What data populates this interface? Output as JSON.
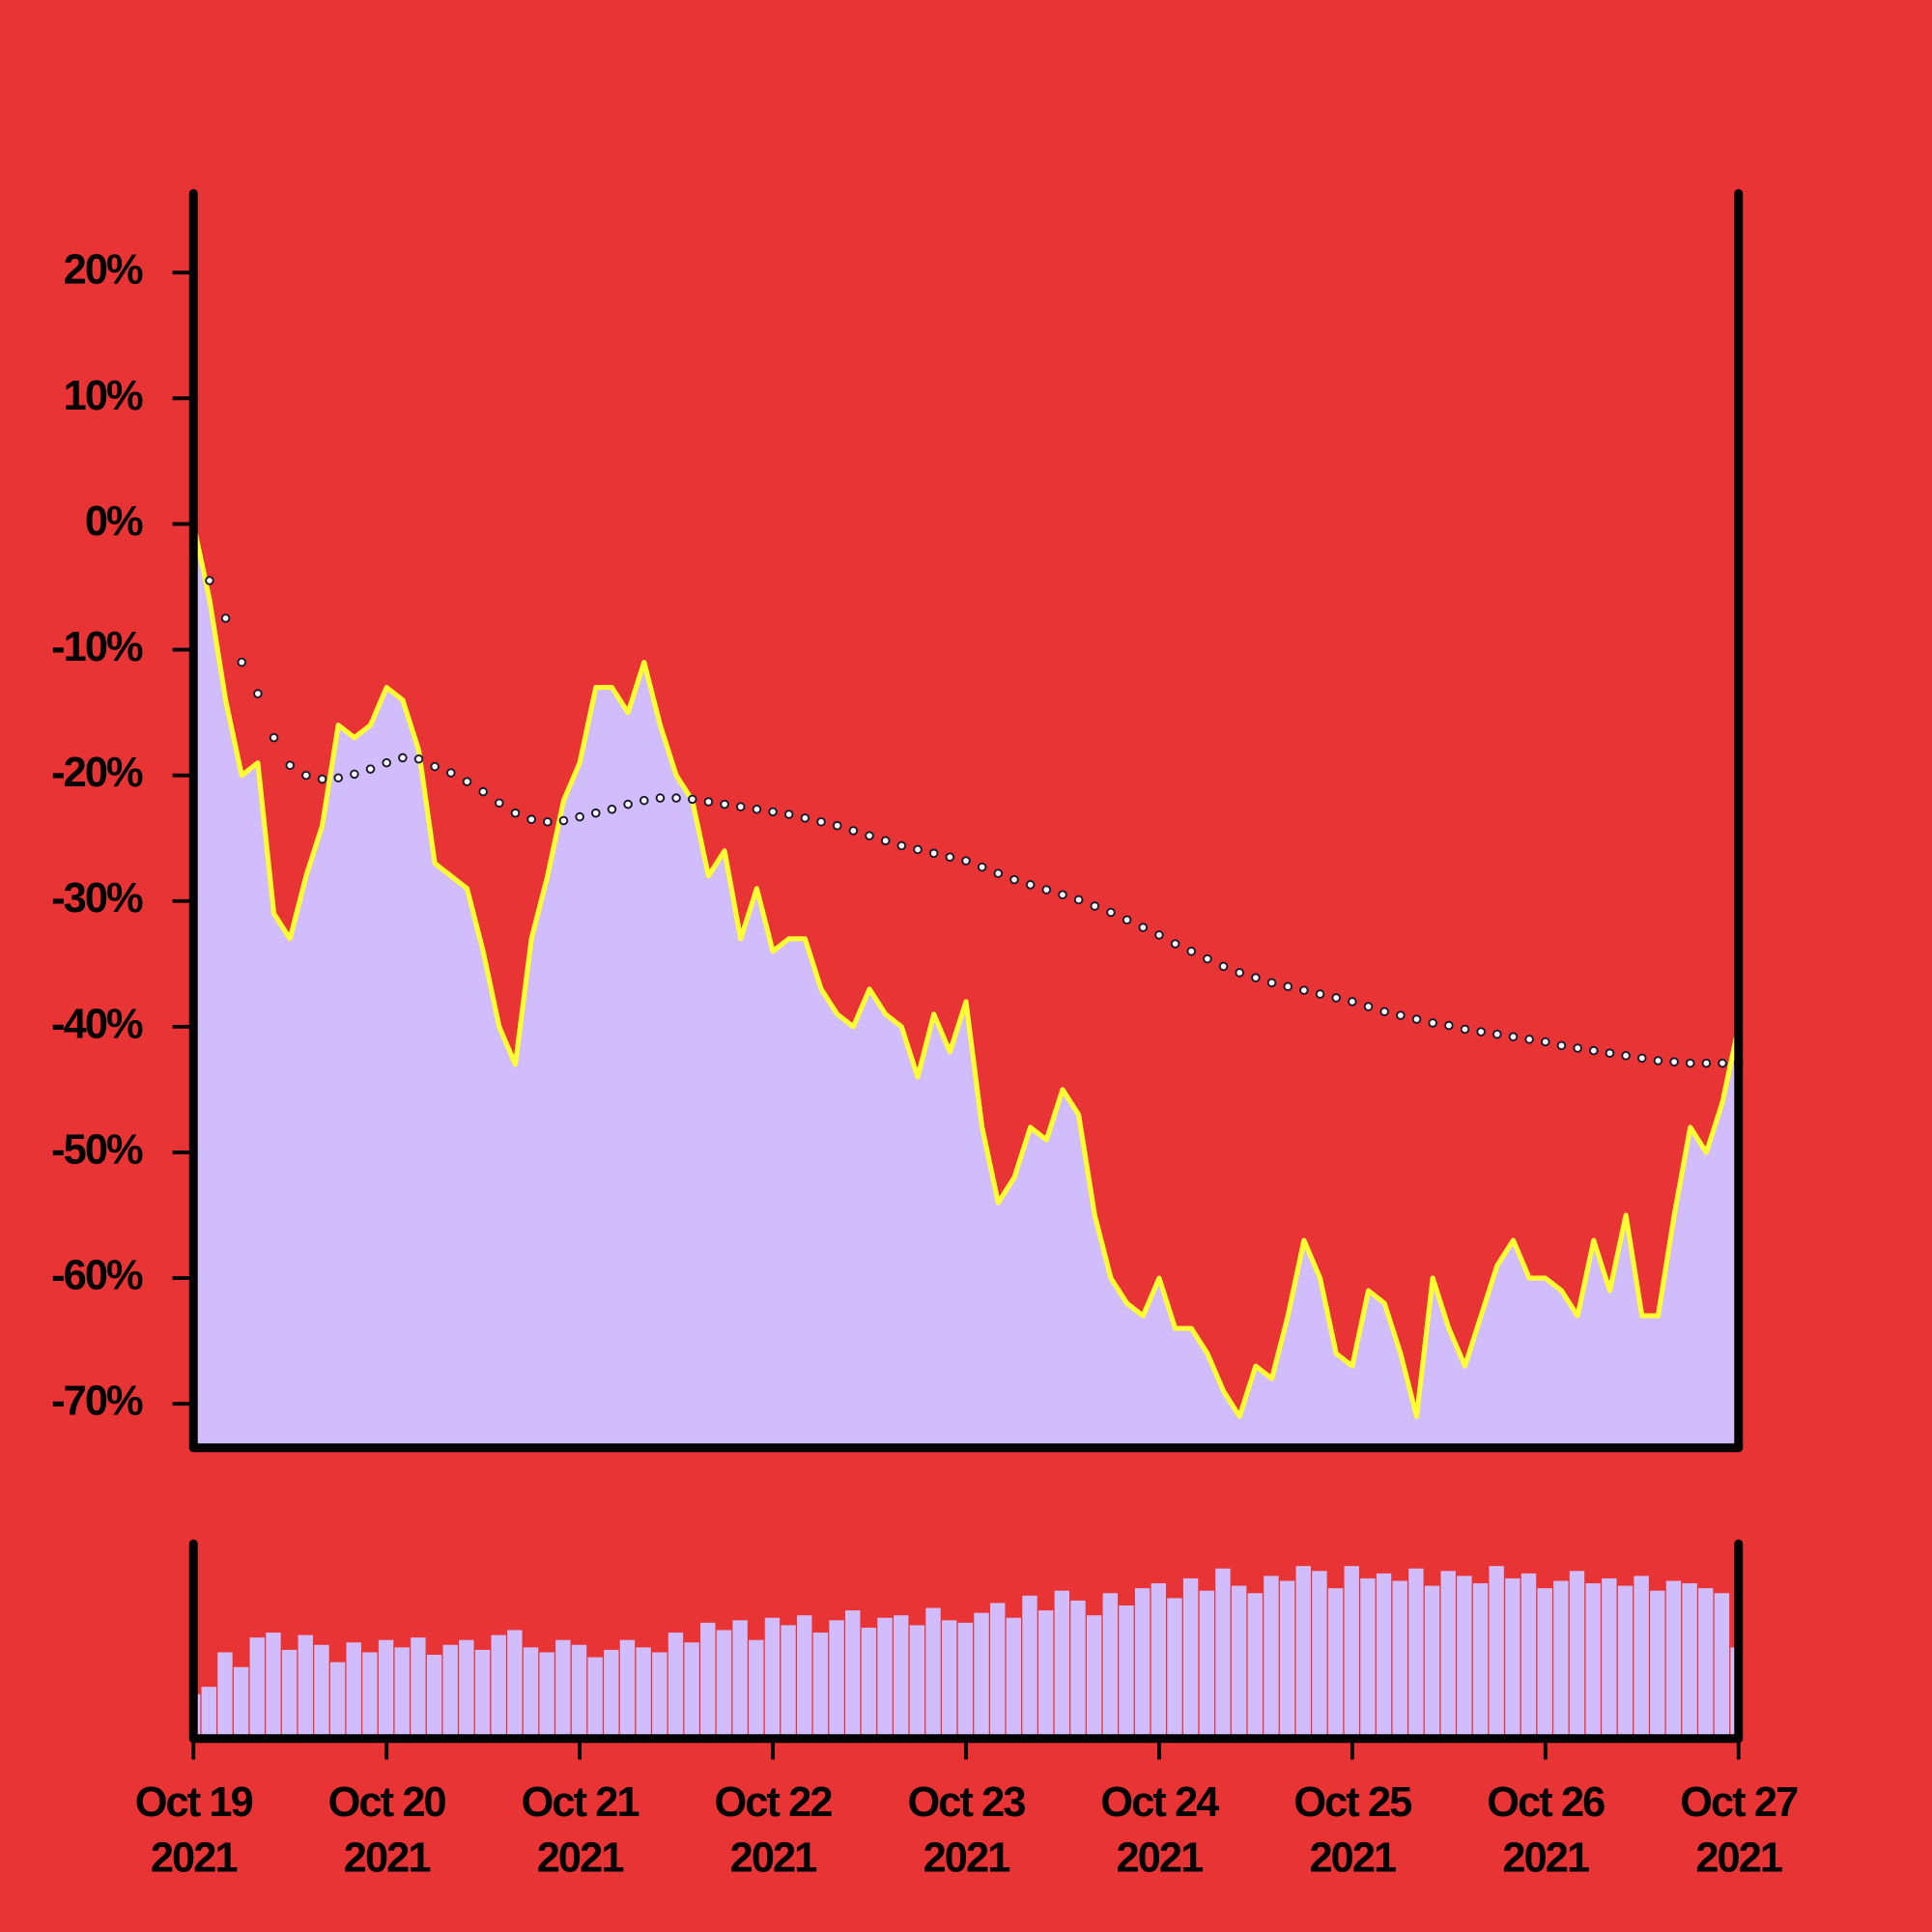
{
  "chart_data": {
    "type": "area",
    "x": [
      0,
      2,
      4,
      6,
      8,
      10,
      12,
      14,
      16,
      18,
      20,
      22,
      24,
      26,
      28,
      30,
      32,
      34,
      36,
      38,
      40,
      42,
      44,
      46,
      48,
      50,
      52,
      54,
      56,
      58,
      60,
      62,
      64,
      66,
      68,
      70,
      72,
      74,
      76,
      78,
      80,
      82,
      84,
      86,
      88,
      90,
      92,
      94,
      96,
      98,
      100,
      102,
      104,
      106,
      108,
      110,
      112,
      114,
      116,
      118,
      120,
      122,
      124,
      126,
      128,
      130,
      132,
      134,
      136,
      138,
      140,
      142,
      144,
      146,
      148,
      150,
      152,
      154,
      156,
      158,
      160,
      162,
      164,
      166,
      168,
      170,
      172,
      174,
      176,
      178,
      180,
      182,
      184,
      186,
      188,
      190,
      192
    ],
    "xlim": [
      0,
      192
    ],
    "xticks": [
      {
        "value": 0,
        "label": [
          "Oct 19",
          "2021"
        ]
      },
      {
        "value": 24,
        "label": [
          "Oct 20",
          "2021"
        ]
      },
      {
        "value": 48,
        "label": [
          "Oct 21",
          "2021"
        ]
      },
      {
        "value": 72,
        "label": [
          "Oct 22",
          "2021"
        ]
      },
      {
        "value": 96,
        "label": [
          "Oct 23",
          "2021"
        ]
      },
      {
        "value": 120,
        "label": [
          "Oct 24",
          "2021"
        ]
      },
      {
        "value": 144,
        "label": [
          "Oct 25",
          "2021"
        ]
      },
      {
        "value": 168,
        "label": [
          "Oct 26",
          "2021"
        ]
      },
      {
        "value": 192,
        "label": [
          "Oct 27",
          "2021"
        ]
      }
    ],
    "ylim": [
      -73.5,
      26.3
    ],
    "yticks": [
      {
        "value": 20,
        "label": "20%"
      },
      {
        "value": 10,
        "label": "10%"
      },
      {
        "value": 0,
        "label": "0%"
      },
      {
        "value": -10,
        "label": "-10%"
      },
      {
        "value": -20,
        "label": "-20%"
      },
      {
        "value": -30,
        "label": "-30%"
      },
      {
        "value": -40,
        "label": "-40%"
      },
      {
        "value": -50,
        "label": "-50%"
      },
      {
        "value": -60,
        "label": "-60%"
      },
      {
        "value": -70,
        "label": "-70%"
      }
    ],
    "y2lim": [
      0,
      160
    ],
    "series": [
      {
        "type": "area",
        "color": "#ffff33",
        "fill": "#d1bcfc",
        "values": [
          0,
          -6,
          -14,
          -20,
          -19,
          -31,
          -33,
          -28,
          -24,
          -16,
          -17,
          -16,
          -13,
          -14,
          -18,
          -27,
          -28,
          -29,
          -34,
          -40,
          -43,
          -33,
          -28,
          -22,
          -19,
          -13,
          -13,
          -15,
          -11,
          -16,
          -20,
          -22,
          -28,
          -26,
          -33,
          -29,
          -34,
          -33,
          -33,
          -37,
          -39,
          -40,
          -37,
          -39,
          -40,
          -44,
          -39,
          -42,
          -38,
          -48,
          -54,
          -52,
          -48,
          -49,
          -45,
          -47,
          -55,
          -60,
          -62,
          -63,
          -60,
          -64,
          -64,
          -66,
          -69,
          -71,
          -67,
          -68,
          -63,
          -57,
          -60,
          -66,
          -67,
          -61,
          -62,
          -66,
          -71,
          -60,
          -64,
          -67,
          -63,
          -59,
          -57,
          -60,
          -60,
          -61,
          -63,
          -57,
          -61,
          -55,
          -63,
          -63,
          -55,
          -48,
          -50,
          -46,
          -40
        ]
      },
      {
        "type": "dots",
        "color": "#ffffff",
        "stroke": "#1a1a2e",
        "values": [
          null,
          -4.5,
          -7.5,
          -11,
          -13.5,
          -17,
          -19.2,
          -20,
          -20.3,
          -20.2,
          -19.9,
          -19.5,
          -19,
          -18.6,
          -18.7,
          -19.3,
          -19.8,
          -20.5,
          -21.3,
          -22.2,
          -23,
          -23.5,
          -23.7,
          -23.6,
          -23.3,
          -23,
          -22.7,
          -22.3,
          -22,
          -21.8,
          -21.8,
          -21.9,
          -22.1,
          -22.3,
          -22.5,
          -22.7,
          -22.9,
          -23.1,
          -23.4,
          -23.7,
          -24,
          -24.4,
          -24.8,
          -25.2,
          -25.6,
          -25.9,
          -26.2,
          -26.5,
          -26.8,
          -27.3,
          -27.8,
          -28.3,
          -28.7,
          -29.1,
          -29.5,
          -29.9,
          -30.4,
          -30.9,
          -31.5,
          -32.1,
          -32.7,
          -33.4,
          -34,
          -34.6,
          -35.2,
          -35.7,
          -36.1,
          -36.5,
          -36.8,
          -37.1,
          -37.4,
          -37.7,
          -38,
          -38.4,
          -38.8,
          -39.1,
          -39.4,
          -39.7,
          -39.9,
          -40.2,
          -40.4,
          -40.6,
          -40.8,
          -41,
          -41.2,
          -41.5,
          -41.7,
          -41.9,
          -42.1,
          -42.3,
          -42.5,
          -42.7,
          -42.8,
          -42.9,
          -42.9,
          -42.9,
          -42.9
        ]
      },
      {
        "type": "bar",
        "axis": "y2",
        "color": "#d1bcfc",
        "values": [
          36,
          42,
          70,
          58,
          82,
          86,
          72,
          84,
          76,
          62,
          78,
          70,
          80,
          74,
          82,
          68,
          76,
          80,
          72,
          84,
          88,
          74,
          70,
          80,
          76,
          66,
          72,
          80,
          74,
          70,
          86,
          78,
          94,
          88,
          96,
          80,
          98,
          92,
          100,
          86,
          96,
          104,
          90,
          98,
          100,
          92,
          106,
          96,
          94,
          102,
          110,
          98,
          116,
          104,
          120,
          112,
          100,
          118,
          108,
          122,
          126,
          114,
          130,
          120,
          138,
          124,
          118,
          132,
          128,
          140,
          136,
          122,
          140,
          130,
          134,
          128,
          138,
          124,
          136,
          132,
          126,
          140,
          130,
          134,
          122,
          128,
          136,
          126,
          130,
          124,
          132,
          120,
          128,
          126,
          122,
          118,
          74
        ]
      }
    ]
  }
}
